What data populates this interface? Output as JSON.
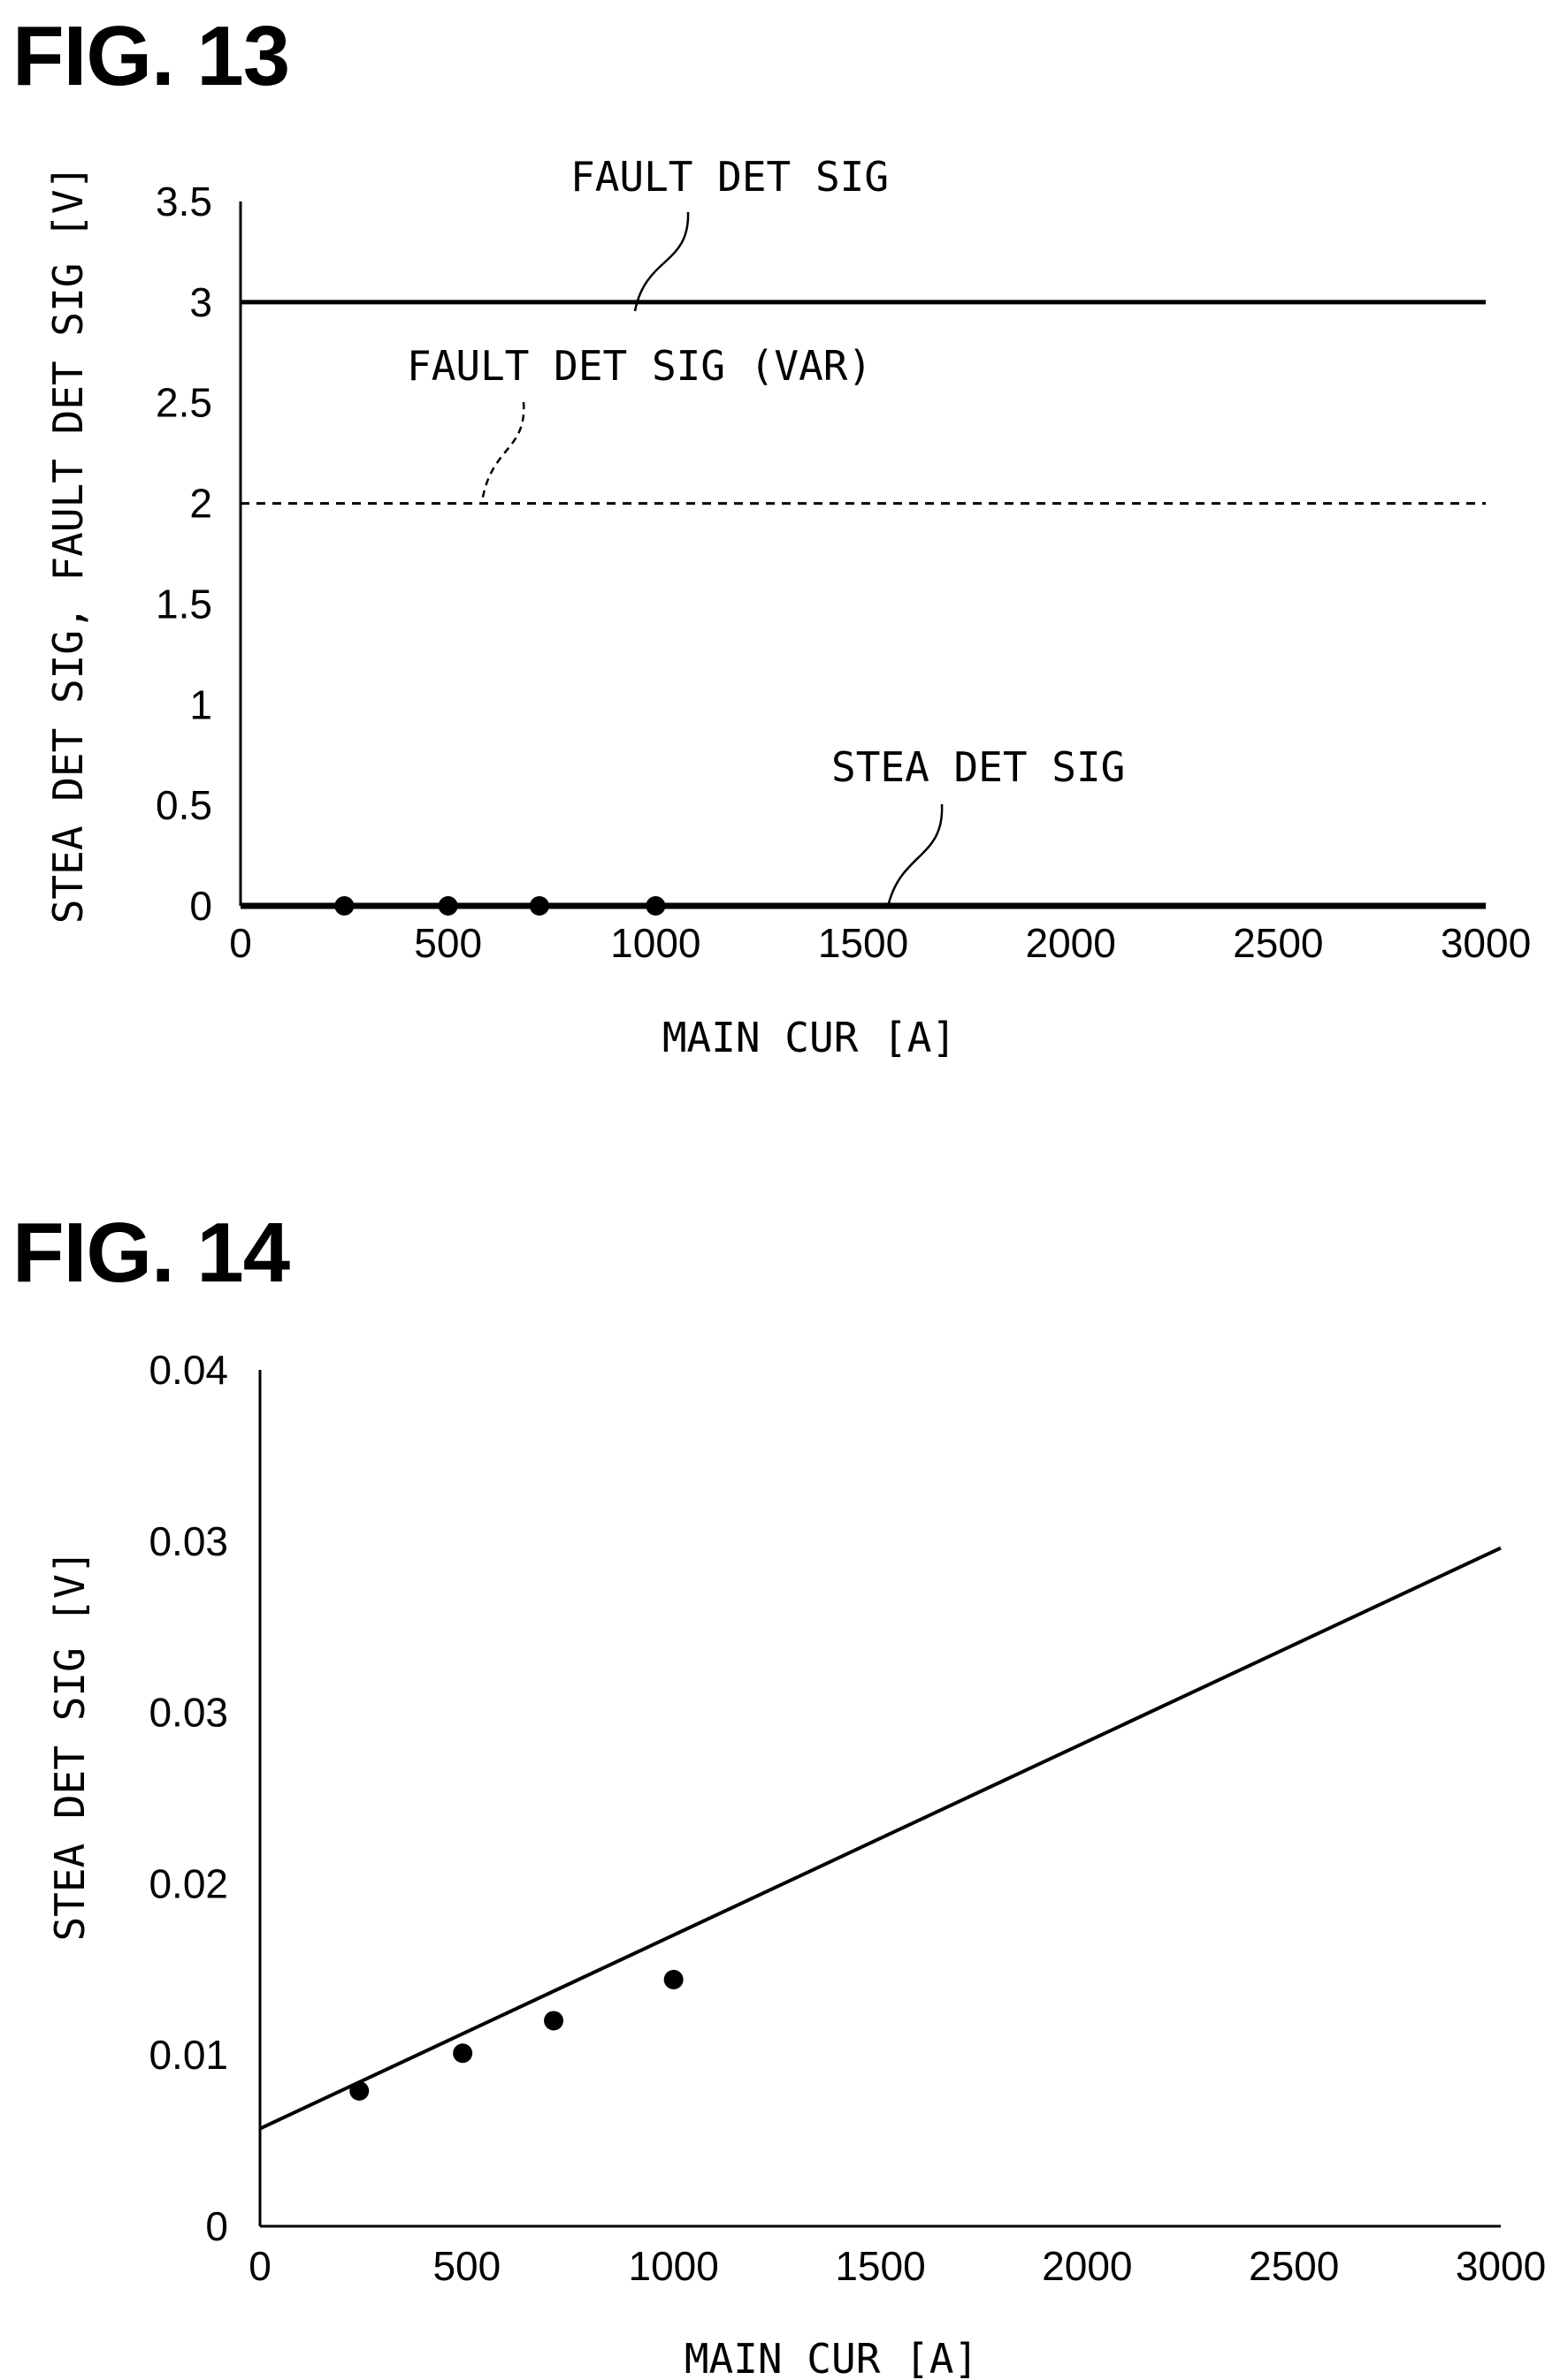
{
  "figures": {
    "fig13": {
      "label": "FIG. 13"
    },
    "fig14": {
      "label": "FIG. 14"
    }
  },
  "chart_data": [
    {
      "type": "line",
      "xlabel": "MAIN CUR [A]",
      "ylabel": "STEA DET SIG, FAULT DET SIG [V]",
      "xlim": [
        0,
        3000
      ],
      "ylim": [
        0,
        3.5
      ],
      "x_ticks": [
        "0",
        "500",
        "1000",
        "1500",
        "2000",
        "2500",
        "3000"
      ],
      "y_ticks": [
        "0",
        "0.5",
        "1",
        "1.5",
        "2",
        "2.5",
        "3",
        "3.5"
      ],
      "grid": false,
      "series": [
        {
          "name": "FAULT DET SIG",
          "style": "solid",
          "x": [
            0,
            3000
          ],
          "y": [
            3,
            3
          ]
        },
        {
          "name": "FAULT DET SIG (VAR)",
          "style": "dashed",
          "x": [
            0,
            3000
          ],
          "y": [
            2,
            2
          ]
        },
        {
          "name": "STEA DET SIG",
          "style": "solid-thick",
          "x": [
            0,
            3000
          ],
          "y": [
            0,
            0
          ]
        }
      ],
      "points": {
        "x": [
          250,
          500,
          720,
          1000
        ],
        "y": [
          0,
          0,
          0,
          0
        ]
      }
    },
    {
      "type": "line",
      "xlabel": "MAIN CUR [A]",
      "ylabel": "STEA DET SIG [V]",
      "xlim": [
        0,
        3000
      ],
      "ylim": [
        0,
        0.05
      ],
      "x_ticks": [
        "0",
        "500",
        "1000",
        "1500",
        "2000",
        "2500",
        "3000"
      ],
      "y_ticks": [
        "0",
        "0.01",
        "0.02",
        "0.03",
        "0.03",
        "0.04"
      ],
      "grid": false,
      "series": [
        {
          "style": "solid",
          "x": [
            0,
            3000
          ],
          "y": [
            0.0057,
            0.0396
          ]
        }
      ],
      "points": {
        "x": [
          240,
          490,
          710,
          1000
        ],
        "y": [
          0.0079,
          0.0101,
          0.012,
          0.0144
        ]
      }
    }
  ]
}
